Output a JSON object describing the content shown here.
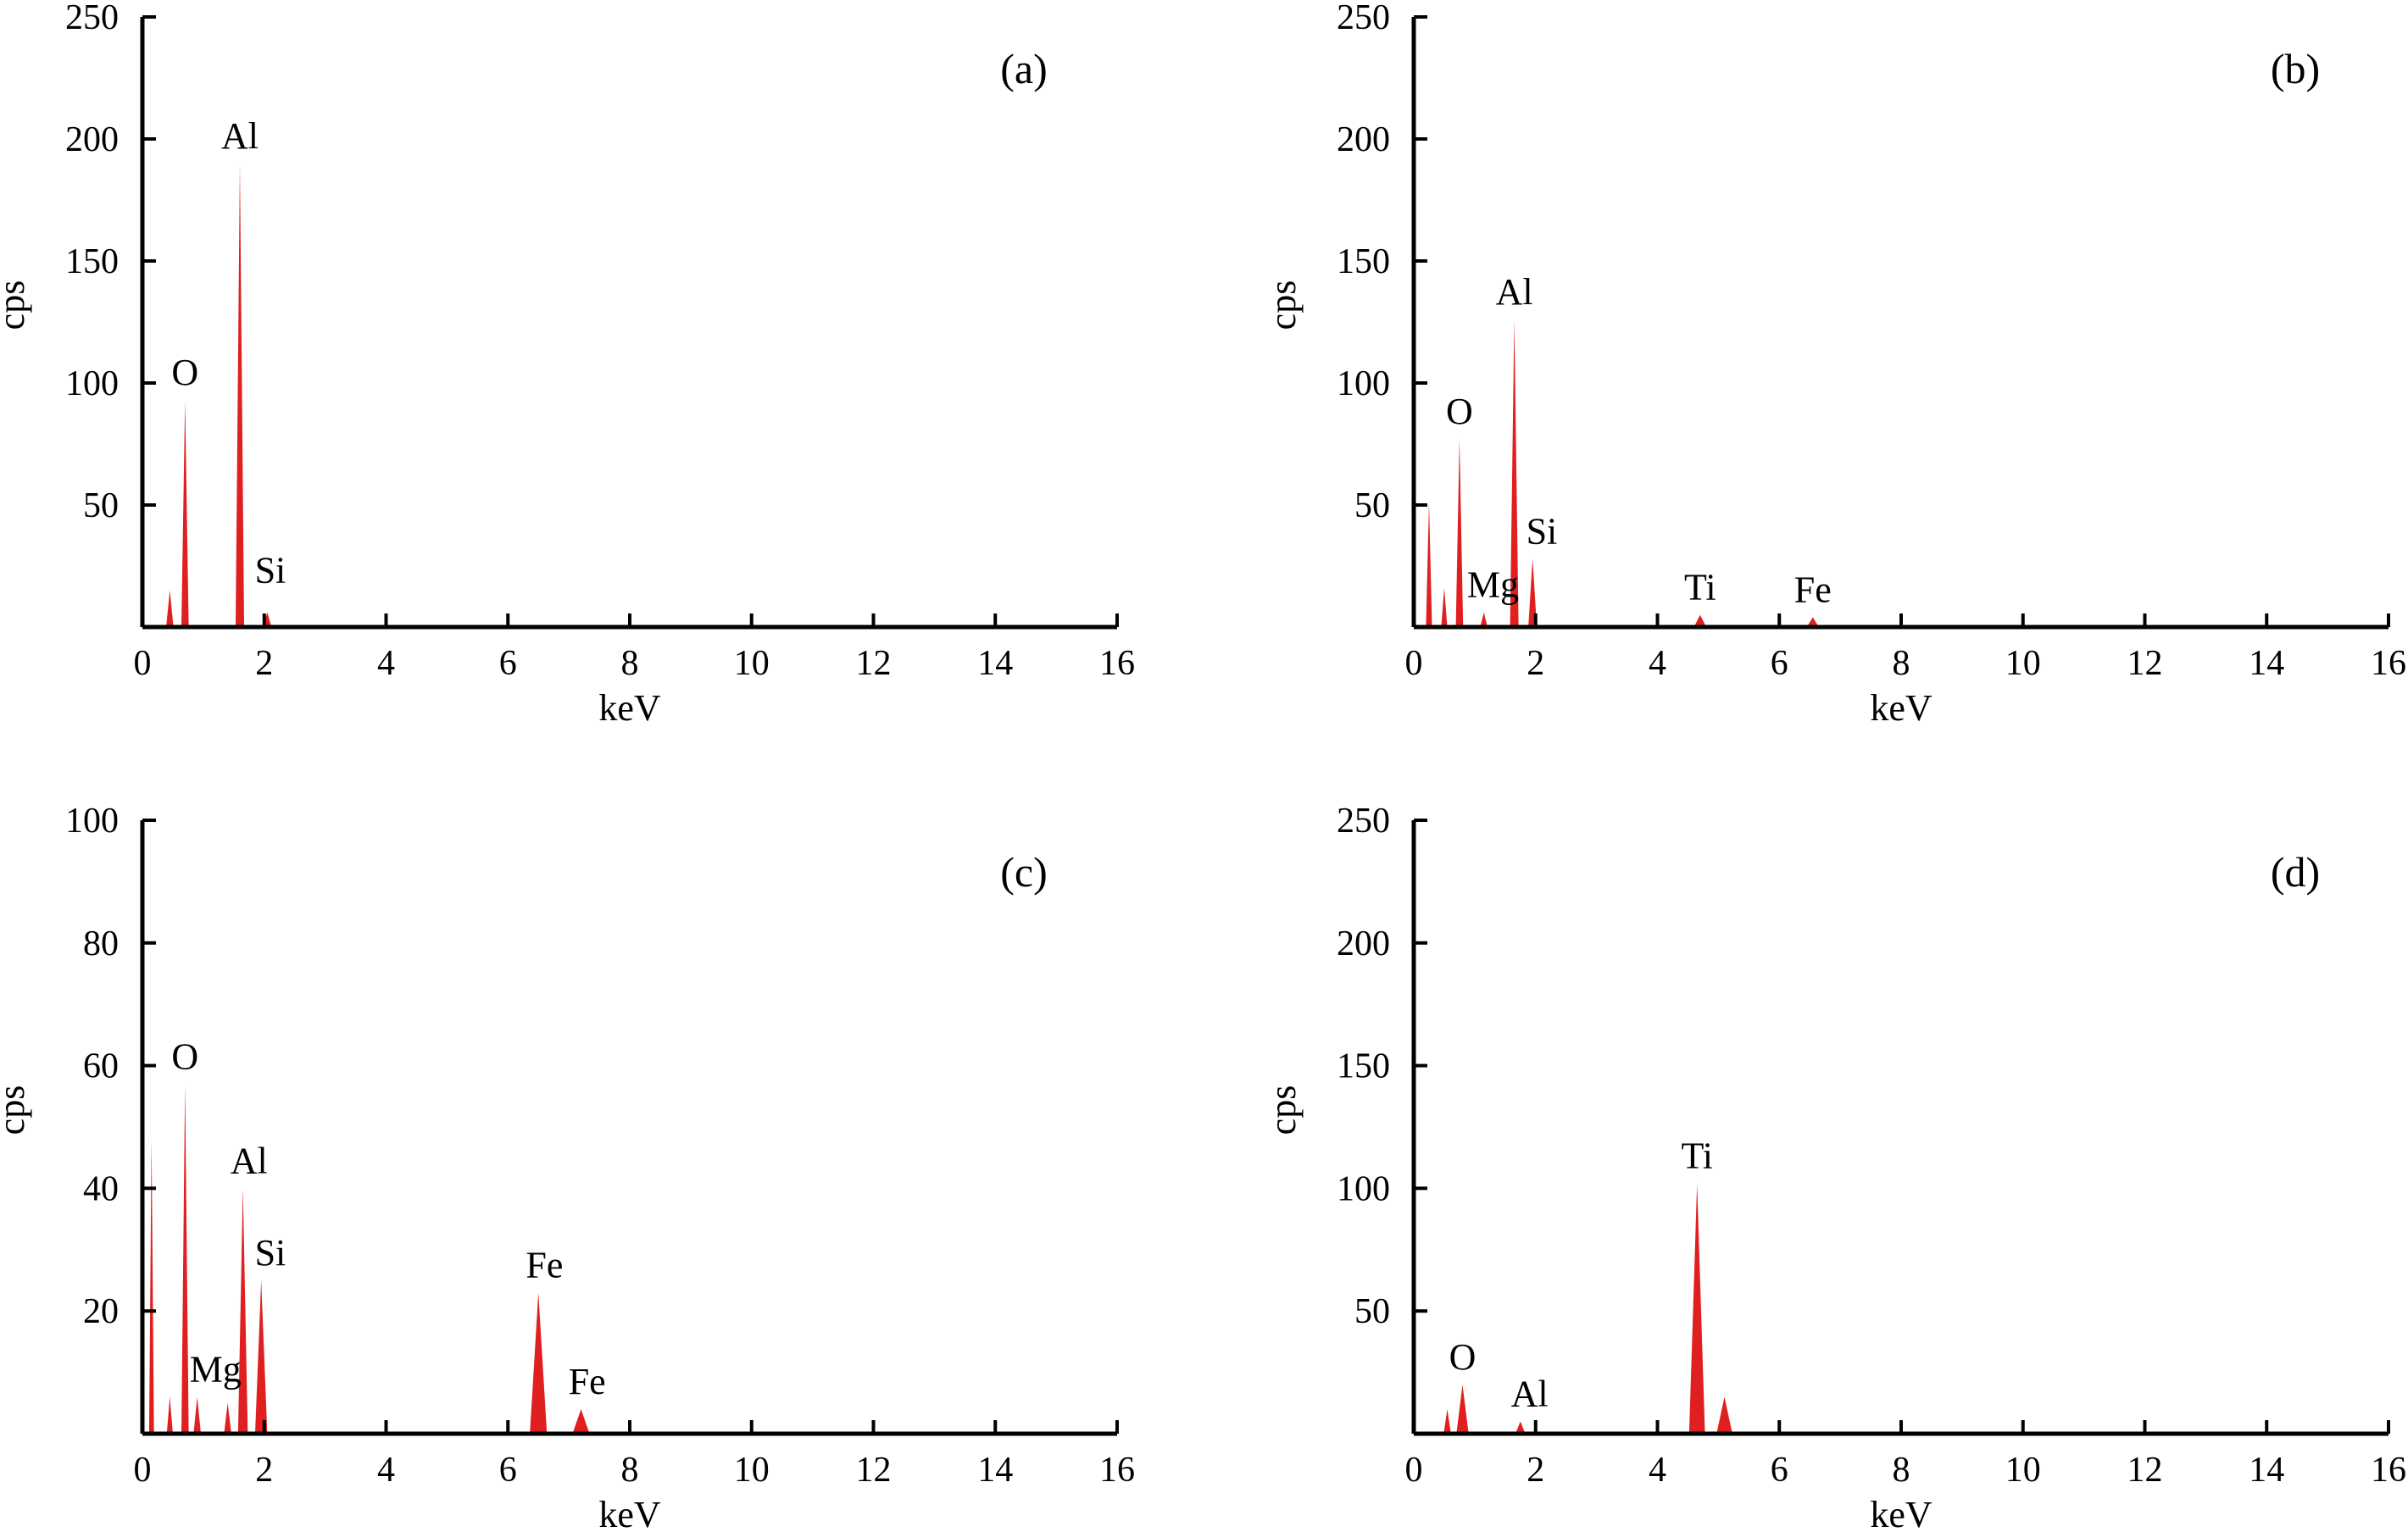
{
  "chart_data": [
    {
      "type": "area",
      "panel": "(a)",
      "xlabel": "keV",
      "ylabel": "cps",
      "xlim": [
        0,
        16
      ],
      "ylim": [
        0,
        250
      ],
      "xticks": [
        0,
        2,
        4,
        6,
        8,
        10,
        12,
        14,
        16
      ],
      "yticks": [
        50,
        100,
        150,
        200,
        250
      ],
      "color": "#e02020",
      "peaks": [
        {
          "x": 0.45,
          "y": 15,
          "w": 0.06
        },
        {
          "x": 0.7,
          "y": 93,
          "w": 0.06
        },
        {
          "x": 1.6,
          "y": 190,
          "w": 0.07
        },
        {
          "x": 2.05,
          "y": 6,
          "w": 0.07
        }
      ],
      "labels": [
        {
          "text": "O",
          "x": 0.7,
          "y": 93
        },
        {
          "text": "Al",
          "x": 1.6,
          "y": 190
        },
        {
          "text": "Si",
          "x": 2.1,
          "y": 12
        }
      ]
    },
    {
      "type": "area",
      "panel": "(b)",
      "xlabel": "keV",
      "ylabel": "cps",
      "xlim": [
        0,
        16
      ],
      "ylim": [
        0,
        250
      ],
      "xticks": [
        0,
        2,
        4,
        6,
        8,
        10,
        12,
        14,
        16
      ],
      "yticks": [
        50,
        100,
        150,
        200,
        250
      ],
      "color": "#e02020",
      "peaks": [
        {
          "x": 0.25,
          "y": 51,
          "w": 0.05
        },
        {
          "x": 0.5,
          "y": 16,
          "w": 0.05
        },
        {
          "x": 0.75,
          "y": 77,
          "w": 0.06
        },
        {
          "x": 1.15,
          "y": 6,
          "w": 0.06
        },
        {
          "x": 1.65,
          "y": 126,
          "w": 0.07
        },
        {
          "x": 1.95,
          "y": 28,
          "w": 0.07
        },
        {
          "x": 4.7,
          "y": 5,
          "w": 0.1
        },
        {
          "x": 6.55,
          "y": 4,
          "w": 0.1
        }
      ],
      "labels": [
        {
          "text": "O",
          "x": 0.75,
          "y": 77
        },
        {
          "text": "Mg",
          "x": 1.3,
          "y": 6
        },
        {
          "text": "Al",
          "x": 1.65,
          "y": 126
        },
        {
          "text": "Si",
          "x": 2.1,
          "y": 28
        },
        {
          "text": "Ti",
          "x": 4.7,
          "y": 5
        },
        {
          "text": "Fe",
          "x": 6.55,
          "y": 4
        }
      ]
    },
    {
      "type": "area",
      "panel": "(c)",
      "xlabel": "keV",
      "ylabel": "cps",
      "xlim": [
        0,
        16
      ],
      "ylim": [
        0,
        100
      ],
      "xticks": [
        0,
        2,
        4,
        6,
        8,
        10,
        12,
        14,
        16
      ],
      "yticks": [
        20,
        40,
        60,
        80,
        100
      ],
      "color": "#e02020",
      "peaks": [
        {
          "x": 0.15,
          "y": 48,
          "w": 0.04
        },
        {
          "x": 0.45,
          "y": 6,
          "w": 0.05
        },
        {
          "x": 0.7,
          "y": 57,
          "w": 0.06
        },
        {
          "x": 0.9,
          "y": 6,
          "w": 0.06
        },
        {
          "x": 1.4,
          "y": 5,
          "w": 0.06
        },
        {
          "x": 1.65,
          "y": 40,
          "w": 0.08
        },
        {
          "x": 1.95,
          "y": 25,
          "w": 0.1
        },
        {
          "x": 6.5,
          "y": 23,
          "w": 0.14
        },
        {
          "x": 7.2,
          "y": 4,
          "w": 0.14
        }
      ],
      "labels": [
        {
          "text": "O",
          "x": 0.7,
          "y": 57
        },
        {
          "text": "Mg",
          "x": 1.2,
          "y": 6
        },
        {
          "text": "Al",
          "x": 1.75,
          "y": 40
        },
        {
          "text": "Si",
          "x": 2.1,
          "y": 25
        },
        {
          "text": "Fe",
          "x": 6.6,
          "y": 23
        },
        {
          "text": "Fe",
          "x": 7.3,
          "y": 4
        }
      ]
    },
    {
      "type": "area",
      "panel": "(d)",
      "xlabel": "keV",
      "ylabel": "cps",
      "xlim": [
        0,
        16
      ],
      "ylim": [
        0,
        250
      ],
      "xticks": [
        0,
        2,
        4,
        6,
        8,
        10,
        12,
        14,
        16
      ],
      "yticks": [
        50,
        100,
        150,
        200,
        250
      ],
      "color": "#e02020",
      "peaks": [
        {
          "x": 0.55,
          "y": 10,
          "w": 0.06
        },
        {
          "x": 0.8,
          "y": 20,
          "w": 0.1
        },
        {
          "x": 1.75,
          "y": 5,
          "w": 0.08
        },
        {
          "x": 4.65,
          "y": 102,
          "w": 0.13
        },
        {
          "x": 5.1,
          "y": 15,
          "w": 0.13
        }
      ],
      "labels": [
        {
          "text": "O",
          "x": 0.8,
          "y": 20
        },
        {
          "text": "Al",
          "x": 1.9,
          "y": 5
        },
        {
          "text": "Ti",
          "x": 4.65,
          "y": 102
        }
      ]
    }
  ]
}
